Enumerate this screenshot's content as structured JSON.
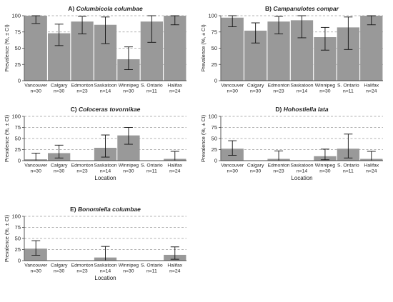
{
  "chart_data": [
    {
      "type": "bar",
      "letter": "A)",
      "species": "Columbicola columbae",
      "categories": [
        "Vancouver",
        "Calgary",
        "Edmonton",
        "Saskatoon",
        "Winnipeg",
        "S. Ontario",
        "Halifax"
      ],
      "n_labels": [
        "n=30",
        "n=30",
        "n=23",
        "n=14",
        "n=30",
        "n=11",
        "n=24"
      ],
      "values": [
        100,
        73,
        91,
        86,
        33,
        91,
        100
      ],
      "ci_low": [
        88,
        54,
        72,
        57,
        17,
        59,
        86
      ],
      "ci_high": [
        100,
        87,
        99,
        98,
        52,
        100,
        100
      ],
      "ylabel": "Prevalence (%, ± CI)",
      "xlabel": "",
      "ylim": [
        0,
        100
      ],
      "yticks": [
        "0",
        "25",
        "50",
        "75",
        "100"
      ],
      "grid": true
    },
    {
      "type": "bar",
      "letter": "B)",
      "species": "Campanulotes compar",
      "categories": [
        "Vancouver",
        "Calgary",
        "Edmonton",
        "Saskatoon",
        "Winnipeg",
        "S. Ontario",
        "Halifax"
      ],
      "n_labels": [
        "n=30",
        "n=30",
        "n=23",
        "n=14",
        "n=30",
        "n=11",
        "n=24"
      ],
      "values": [
        97,
        77,
        91,
        93,
        67,
        82,
        100
      ],
      "ci_low": [
        83,
        58,
        72,
        66,
        47,
        48,
        86
      ],
      "ci_high": [
        100,
        89,
        99,
        100,
        82,
        98,
        100
      ],
      "ylabel": "Prevalence (%, ± CI)",
      "xlabel": "",
      "ylim": [
        0,
        100
      ],
      "yticks": [
        "0",
        "25",
        "50",
        "75",
        "100"
      ],
      "grid": true
    },
    {
      "type": "bar",
      "letter": "C)",
      "species": "Coloceras tovornikae",
      "categories": [
        "Vancouver",
        "Calgary",
        "Edmonton",
        "Saskatoon",
        "Winnipeg",
        "S. Ontario",
        "Halifax"
      ],
      "n_labels": [
        "n=30",
        "n=30",
        "n=23",
        "n=14",
        "n=30",
        "n=11",
        "n=24"
      ],
      "values": [
        3,
        17,
        0,
        29,
        57,
        0,
        4
      ],
      "ci_low": [
        0,
        6,
        null,
        8,
        37,
        null,
        0
      ],
      "ci_high": [
        17,
        35,
        null,
        58,
        75,
        null,
        21
      ],
      "ylabel": "Prevalence (%, ± CI)",
      "xlabel": "Location",
      "ylim": [
        0,
        100
      ],
      "yticks": [
        "0",
        "25",
        "50",
        "75",
        "100"
      ],
      "grid": true
    },
    {
      "type": "bar",
      "letter": "D)",
      "species": "Hohostiella lata",
      "categories": [
        "Vancouver",
        "Calgary",
        "Edmonton",
        "Saskatoon",
        "Winnipeg",
        "S. Ontario",
        "Halifax"
      ],
      "n_labels": [
        "n=30",
        "n=30",
        "n=23",
        "n=14",
        "n=30",
        "n=11",
        "n=24"
      ],
      "values": [
        27,
        0,
        4,
        0,
        10,
        27,
        4
      ],
      "ci_low": [
        12,
        null,
        0,
        null,
        2,
        6,
        0
      ],
      "ci_high": [
        45,
        null,
        22,
        null,
        26,
        60,
        21
      ],
      "ylabel": "Prevalence (%, ± CI)",
      "xlabel": "Location",
      "ylim": [
        0,
        100
      ],
      "yticks": [
        "0",
        "25",
        "50",
        "75",
        "100"
      ],
      "grid": true
    },
    {
      "type": "bar",
      "letter": "E)",
      "species": "Bonomiella columbae",
      "categories": [
        "Vancouver",
        "Calgary",
        "Edmonton",
        "Saskatoon",
        "Winnipeg",
        "S. Ontario",
        "Halifax"
      ],
      "n_labels": [
        "n=30",
        "n=30",
        "n=23",
        "n=14",
        "n=30",
        "n=11",
        "n=24"
      ],
      "values": [
        27,
        0,
        0,
        7,
        0,
        0,
        13
      ],
      "ci_low": [
        12,
        null,
        null,
        0,
        null,
        null,
        3
      ],
      "ci_high": [
        45,
        null,
        null,
        32,
        null,
        null,
        31
      ],
      "ylabel": "Prevalence (%, ± CI)",
      "xlabel": "Location",
      "ylim": [
        0,
        100
      ],
      "yticks": [
        "0",
        "25",
        "50",
        "75",
        "100"
      ],
      "grid": true
    }
  ],
  "colors": {
    "bar": "#999999",
    "grid": "#9a9a9a",
    "axis": "#444444",
    "errorbar": "#111111"
  }
}
